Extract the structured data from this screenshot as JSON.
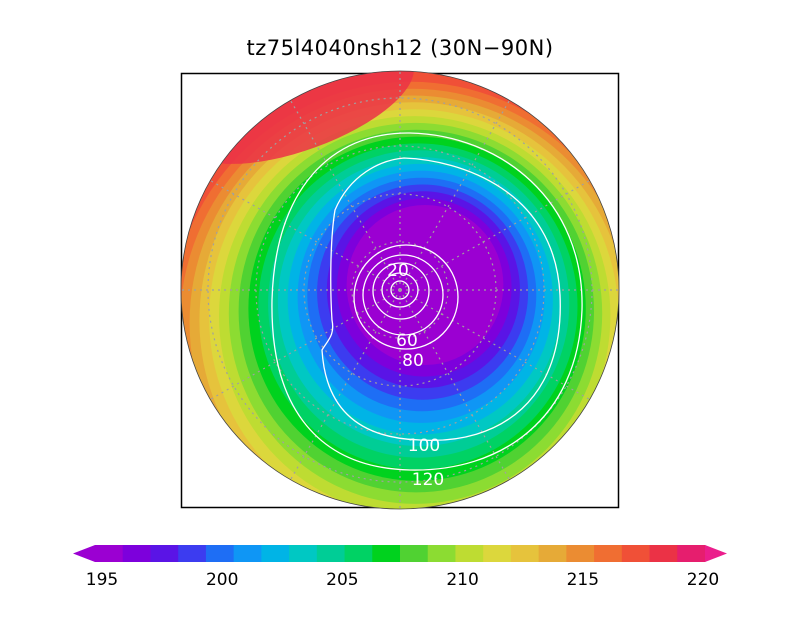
{
  "title": "tz75l4040nsh12 (30N−90N)",
  "map": {
    "projection": "north-polar-stereographic",
    "latitude_range": "30N-90N",
    "field": "temperature",
    "min_value": 195,
    "max_value": 220,
    "contour_labels": [
      {
        "id": "c20",
        "text": "20"
      },
      {
        "id": "c60",
        "text": "60"
      },
      {
        "id": "c80",
        "text": "80"
      },
      {
        "id": "c100",
        "text": "100"
      },
      {
        "id": "c120",
        "text": "120"
      }
    ]
  },
  "colorbar": {
    "colors": [
      "#9b00d2",
      "#7d00dc",
      "#5a14e6",
      "#3c3cf0",
      "#1e6ef5",
      "#0f96f5",
      "#00b4e6",
      "#00c8c3",
      "#00cd96",
      "#00d264",
      "#00d21e",
      "#50d232",
      "#8cdc32",
      "#bedc32",
      "#dcd73c",
      "#e6c33c",
      "#e6aa37",
      "#eb8c32",
      "#f06e32",
      "#f05037",
      "#eb3246",
      "#e61e6e"
    ],
    "tick_labels": [
      {
        "value": 195,
        "text": "195"
      },
      {
        "value": 200,
        "text": "200"
      },
      {
        "value": 205,
        "text": "205"
      },
      {
        "value": 210,
        "text": "210"
      },
      {
        "value": 215,
        "text": "215"
      },
      {
        "value": 220,
        "text": "220"
      }
    ]
  }
}
